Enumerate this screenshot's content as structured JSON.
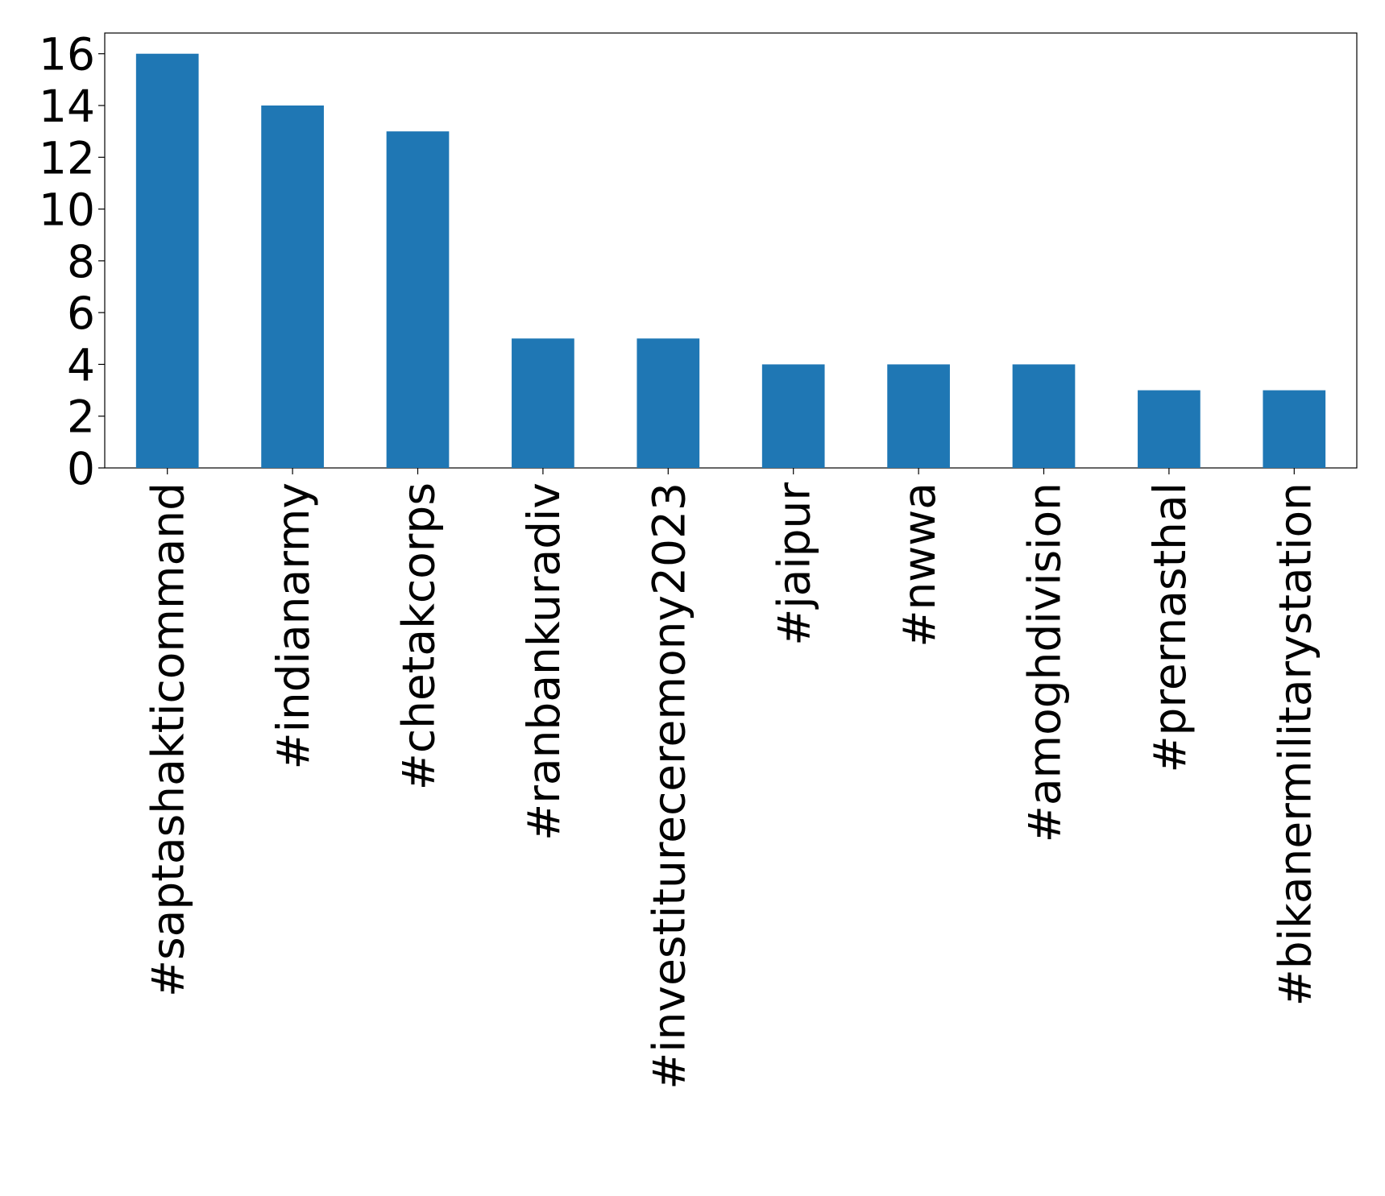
{
  "chart_data": {
    "type": "bar",
    "categories": [
      "#saptashakticommand",
      "#indianarmy",
      "#chetakcorps",
      "#ranbankuradiv",
      "#investitureceremony2023",
      "#jaipur",
      "#nwwa",
      "#amoghdivision",
      "#prernasthal",
      "#bikanermilitarystation"
    ],
    "values": [
      16,
      14,
      13,
      5,
      5,
      4,
      4,
      4,
      3,
      3
    ],
    "color": "#1f77b4",
    "ylim": [
      0,
      16.8
    ],
    "yticks": [
      0,
      2,
      4,
      6,
      8,
      10,
      12,
      14,
      16
    ],
    "grid": false
  }
}
